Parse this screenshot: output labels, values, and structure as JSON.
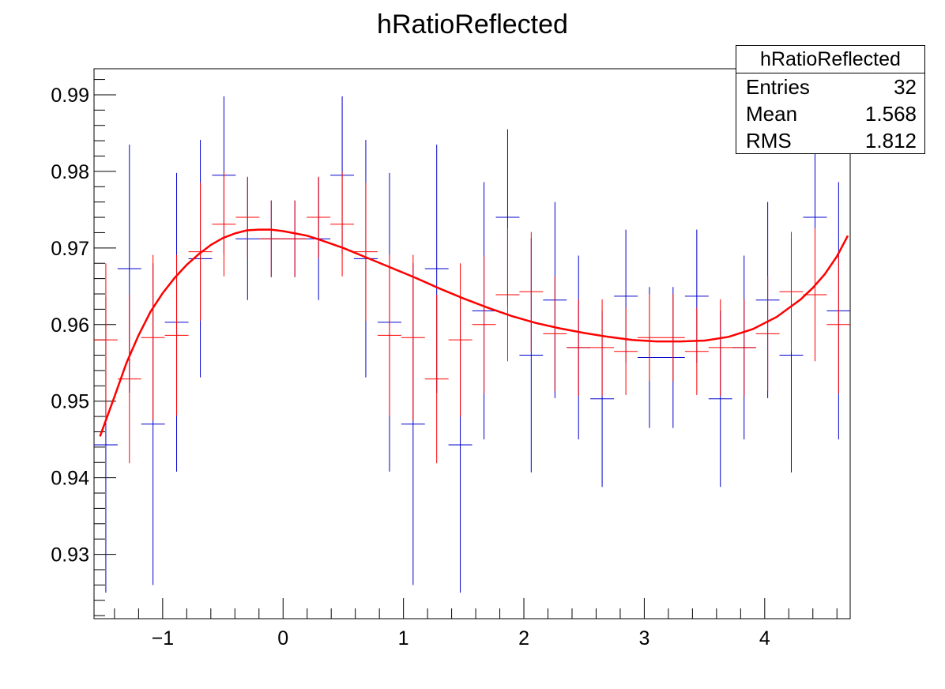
{
  "chart_data": {
    "type": "scatter",
    "title": "hRatioReflected",
    "xlabel": "",
    "ylabel": "",
    "xlim": [
      -1.57,
      4.71
    ],
    "ylim": [
      0.9216,
      0.9934
    ],
    "x_ticks": [
      -1,
      0,
      1,
      2,
      3,
      4
    ],
    "x_tick_labels": [
      "−1",
      "0",
      "1",
      "2",
      "3",
      "4"
    ],
    "y_ticks": [
      0.93,
      0.94,
      0.95,
      0.96,
      0.97,
      0.98,
      0.99
    ],
    "y_tick_labels": [
      "0.93",
      "0.94",
      "0.95",
      "0.96",
      "0.97",
      "0.98",
      "0.99"
    ],
    "grid": false,
    "bin_width": 0.19635,
    "series": [
      {
        "color": "#0000cc",
        "x": [
          -1.472,
          -1.276,
          -1.08,
          -0.884,
          -0.687,
          -0.491,
          -0.295,
          -0.098,
          0.098,
          0.295,
          0.491,
          0.687,
          0.884,
          1.08,
          1.276,
          1.472,
          1.669,
          1.865,
          2.061,
          2.258,
          2.454,
          2.65,
          2.847,
          3.043,
          3.239,
          3.436,
          3.632,
          3.829,
          4.025,
          4.221,
          4.418,
          4.614
        ],
        "y": [
          0.9443,
          0.9673,
          0.947,
          0.9603,
          0.9686,
          0.9795,
          0.9712,
          0.9712,
          0.9712,
          0.9712,
          0.9795,
          0.9686,
          0.9603,
          0.947,
          0.9673,
          0.9443,
          0.9618,
          0.974,
          0.956,
          0.9632,
          0.957,
          0.9503,
          0.9637,
          0.9557,
          0.9557,
          0.9637,
          0.9503,
          0.957,
          0.9632,
          0.956,
          0.974,
          0.9618
        ],
        "yerr": [
          0.0193,
          0.0162,
          0.021,
          0.0195,
          0.0155,
          0.0103,
          0.008,
          0.005,
          0.005,
          0.008,
          0.0103,
          0.0155,
          0.0195,
          0.021,
          0.0162,
          0.0193,
          0.0168,
          0.0115,
          0.0153,
          0.0128,
          0.012,
          0.0115,
          0.0087,
          0.0092,
          0.0092,
          0.0087,
          0.0115,
          0.012,
          0.0128,
          0.0153,
          0.0115,
          0.0168
        ]
      },
      {
        "color": "#ff0000",
        "x": [
          -1.472,
          -1.276,
          -1.08,
          -0.884,
          -0.687,
          -0.491,
          -0.295,
          -0.098,
          0.098,
          0.295,
          0.491,
          0.687,
          0.884,
          1.08,
          1.276,
          1.472,
          1.669,
          1.865,
          2.061,
          2.258,
          2.454,
          2.65,
          2.847,
          3.043,
          3.239,
          3.436,
          3.632,
          3.829,
          4.025,
          4.221,
          4.418,
          4.614
        ],
        "y": [
          0.958,
          0.9529,
          0.9583,
          0.9586,
          0.9695,
          0.9731,
          0.974,
          0.9712,
          0.9712,
          0.974,
          0.9731,
          0.9695,
          0.9586,
          0.9583,
          0.9529,
          0.958,
          0.96,
          0.9639,
          0.9643,
          0.9588,
          0.957,
          0.957,
          0.9565,
          0.9583,
          0.9583,
          0.9565,
          0.957,
          0.957,
          0.9588,
          0.9643,
          0.9639,
          0.96
        ],
        "yerr": [
          0.01,
          0.011,
          0.0108,
          0.0105,
          0.009,
          0.0068,
          0.0053,
          0.005,
          0.005,
          0.0053,
          0.0068,
          0.009,
          0.0105,
          0.0108,
          0.011,
          0.01,
          0.009,
          0.0087,
          0.0078,
          0.0075,
          0.0063,
          0.0063,
          0.0057,
          0.0057,
          0.0057,
          0.0057,
          0.0063,
          0.0063,
          0.0075,
          0.0078,
          0.0087,
          0.009
        ]
      }
    ],
    "fit": {
      "color": "#ff0000",
      "x": [
        -1.52,
        -1.4,
        -1.3,
        -1.2,
        -1.1,
        -1.0,
        -0.9,
        -0.8,
        -0.7,
        -0.6,
        -0.5,
        -0.4,
        -0.3,
        -0.2,
        -0.1,
        0.0,
        0.1,
        0.2,
        0.3,
        0.5,
        0.7,
        0.9,
        1.1,
        1.3,
        1.5,
        1.7,
        1.9,
        2.1,
        2.3,
        2.5,
        2.7,
        2.9,
        3.1,
        3.3,
        3.5,
        3.7,
        3.9,
        4.1,
        4.3,
        4.4,
        4.5,
        4.6,
        4.69
      ],
      "y": [
        0.9454,
        0.9506,
        0.955,
        0.9586,
        0.9617,
        0.9641,
        0.9661,
        0.9678,
        0.9692,
        0.9704,
        0.9713,
        0.9719,
        0.9723,
        0.9724,
        0.9724,
        0.9722,
        0.9719,
        0.9716,
        0.9711,
        0.97,
        0.9687,
        0.9674,
        0.9661,
        0.9647,
        0.9634,
        0.9622,
        0.9611,
        0.9602,
        0.9595,
        0.9589,
        0.9584,
        0.958,
        0.9578,
        0.9578,
        0.9579,
        0.9584,
        0.9594,
        0.961,
        0.9633,
        0.9648,
        0.9666,
        0.9689,
        0.9716
      ]
    }
  },
  "stats": {
    "title": "hRatioReflected",
    "entries_label": "Entries",
    "entries_value": "32",
    "mean_label": "Mean",
    "mean_value": "1.568",
    "rms_label": "RMS",
    "rms_value": "1.812"
  }
}
